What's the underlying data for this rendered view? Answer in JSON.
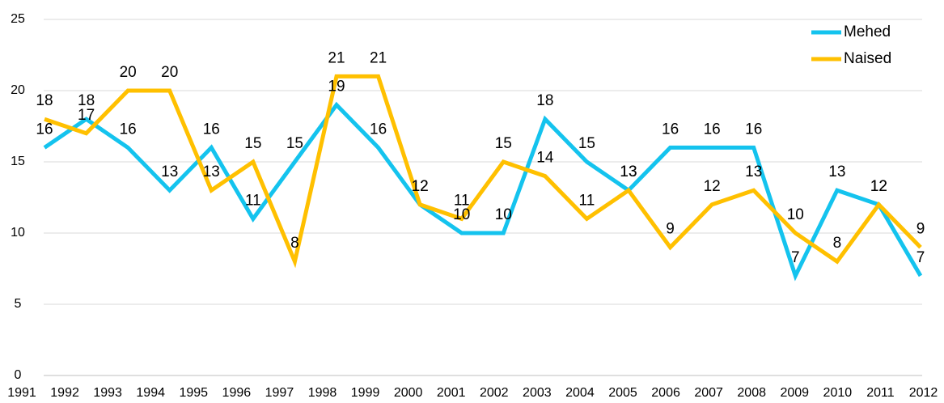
{
  "chart_data": {
    "type": "line",
    "categories": [
      "1991",
      "1992",
      "1993",
      "1994",
      "1995",
      "1996",
      "1997",
      "1998",
      "1999",
      "2000",
      "2001",
      "2002",
      "2003",
      "2004",
      "2005",
      "2006",
      "2007",
      "2008",
      "2009",
      "2010",
      "2011",
      "2012"
    ],
    "series": [
      {
        "name": "Mehed",
        "color": "#14c3ee",
        "values": [
          16,
          18,
          16,
          13,
          16,
          11,
          15,
          19,
          16,
          12,
          10,
          10,
          18,
          15,
          13,
          16,
          16,
          16,
          7,
          13,
          12,
          7
        ]
      },
      {
        "name": "Naised",
        "color": "#ffc000",
        "values": [
          18,
          17,
          20,
          20,
          13,
          15,
          8,
          21,
          21,
          12,
          11,
          15,
          14,
          11,
          13,
          9,
          12,
          13,
          10,
          8,
          12,
          9
        ]
      }
    ],
    "ylim": [
      0,
      25
    ],
    "yticks": [
      0,
      5,
      10,
      15,
      20,
      25
    ],
    "grid": true,
    "legend": "top-right"
  }
}
